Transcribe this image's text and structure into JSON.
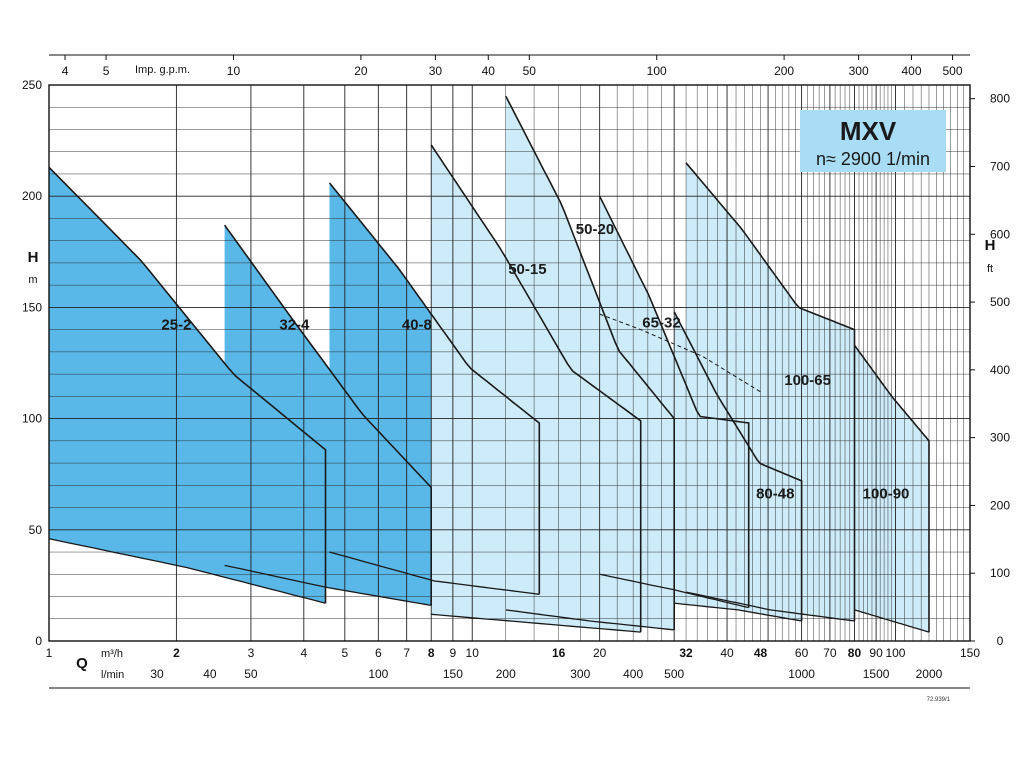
{
  "chart_data": {
    "type": "area",
    "title": "MXV",
    "subtitle": "n≈ 2900 1/min",
    "title_box_color": "#a9dcf5",
    "y_left": {
      "label": "H",
      "unit": "m",
      "min": 0,
      "max": 250,
      "ticks": [
        0,
        50,
        100,
        150,
        200,
        250
      ]
    },
    "y_right": {
      "label": "H",
      "unit": "ft",
      "ticks": [
        0,
        100,
        200,
        300,
        400,
        500,
        600,
        700,
        800
      ]
    },
    "x_bottom_m3h": {
      "label": "Q",
      "unit": "m³/h",
      "min": 1,
      "max": 150,
      "scale": "log",
      "ticks": [
        "1",
        "2",
        "3",
        "4",
        "5",
        "6",
        "7",
        "8",
        "9",
        "10",
        "16",
        "20",
        "32",
        "40",
        "48",
        "60",
        "70",
        "80",
        "90",
        "100",
        "150"
      ]
    },
    "x_bottom_lmin": {
      "unit": "l/min",
      "ticks": [
        "30",
        "40",
        "50",
        "100",
        "150",
        "200",
        "300",
        "400",
        "500",
        "1000",
        "1500",
        "2000"
      ]
    },
    "x_top": {
      "unit": "Imp. g.p.m.",
      "ticks": [
        "4",
        "5",
        "10",
        "20",
        "30",
        "40",
        "50",
        "100",
        "200",
        "300",
        "400",
        "500"
      ]
    },
    "colors": {
      "dark": "#5ab8e8",
      "light": "#cdebf9",
      "stroke": "#1a1a1a",
      "grid": "#222222"
    },
    "series": [
      {
        "name": "25-2",
        "shade": "dark",
        "q": [
          1,
          4.5
        ],
        "h_max": [
          213,
          171,
          120,
          86
        ],
        "h_min": [
          46,
          33,
          17
        ]
      },
      {
        "name": "32-4",
        "shade": "dark",
        "q": [
          2.6,
          8
        ],
        "h_max": [
          187,
          144,
          102,
          69
        ],
        "h_min": [
          34,
          24,
          16
        ]
      },
      {
        "name": "40-8",
        "shade": "dark",
        "q": [
          4.6,
          14.4
        ],
        "h_max": [
          206,
          167,
          123,
          98
        ],
        "h_min": [
          40,
          27,
          21
        ]
      },
      {
        "name": "50-15",
        "shade": "light",
        "q": [
          8,
          25
        ],
        "h_max": [
          223,
          176,
          122,
          99
        ],
        "h_min": [
          12,
          8,
          4
        ]
      },
      {
        "name": "50-20",
        "shade": "light",
        "q": [
          12,
          30
        ],
        "h_max": [
          245,
          196,
          131,
          100
        ],
        "h_min": [
          14,
          9,
          5
        ]
      },
      {
        "name": "65-32",
        "shade": "light",
        "q": [
          20,
          45
        ],
        "h_max": [
          200,
          155,
          101,
          98
        ],
        "h_min": [
          30,
          23,
          15
        ]
      },
      {
        "name": "80-48",
        "shade": "light",
        "q": [
          30,
          60
        ],
        "h_max": [
          148,
          111,
          80,
          72
        ],
        "h_min": [
          17,
          14,
          9
        ]
      },
      {
        "name": "100-65",
        "shade": "light",
        "q": [
          32,
          80
        ],
        "h_max": [
          215,
          185,
          150,
          140
        ],
        "h_min": [
          22,
          14,
          9
        ]
      },
      {
        "name": "100-90",
        "shade": "light",
        "q": [
          80,
          120
        ],
        "h_max": [
          133,
          110,
          90
        ],
        "h_min": [
          14,
          4
        ]
      }
    ],
    "dashed_curve": {
      "q": [
        20,
        25,
        35,
        48
      ],
      "h": [
        147,
        140,
        128,
        112
      ]
    },
    "label_positions": [
      {
        "name": "25-2",
        "q": 2,
        "h": 140
      },
      {
        "name": "32-4",
        "q": 3.8,
        "h": 140
      },
      {
        "name": "40-8",
        "q": 7.4,
        "h": 140
      },
      {
        "name": "50-15",
        "q": 13.5,
        "h": 165
      },
      {
        "name": "50-20",
        "q": 19.5,
        "h": 183
      },
      {
        "name": "65-32",
        "q": 28,
        "h": 141
      },
      {
        "name": "80-48",
        "q": 52,
        "h": 64
      },
      {
        "name": "100-65",
        "q": 62,
        "h": 115
      },
      {
        "name": "100-90",
        "q": 95,
        "h": 64
      }
    ],
    "drawing_code": "72.939/1",
    "grid": true
  }
}
